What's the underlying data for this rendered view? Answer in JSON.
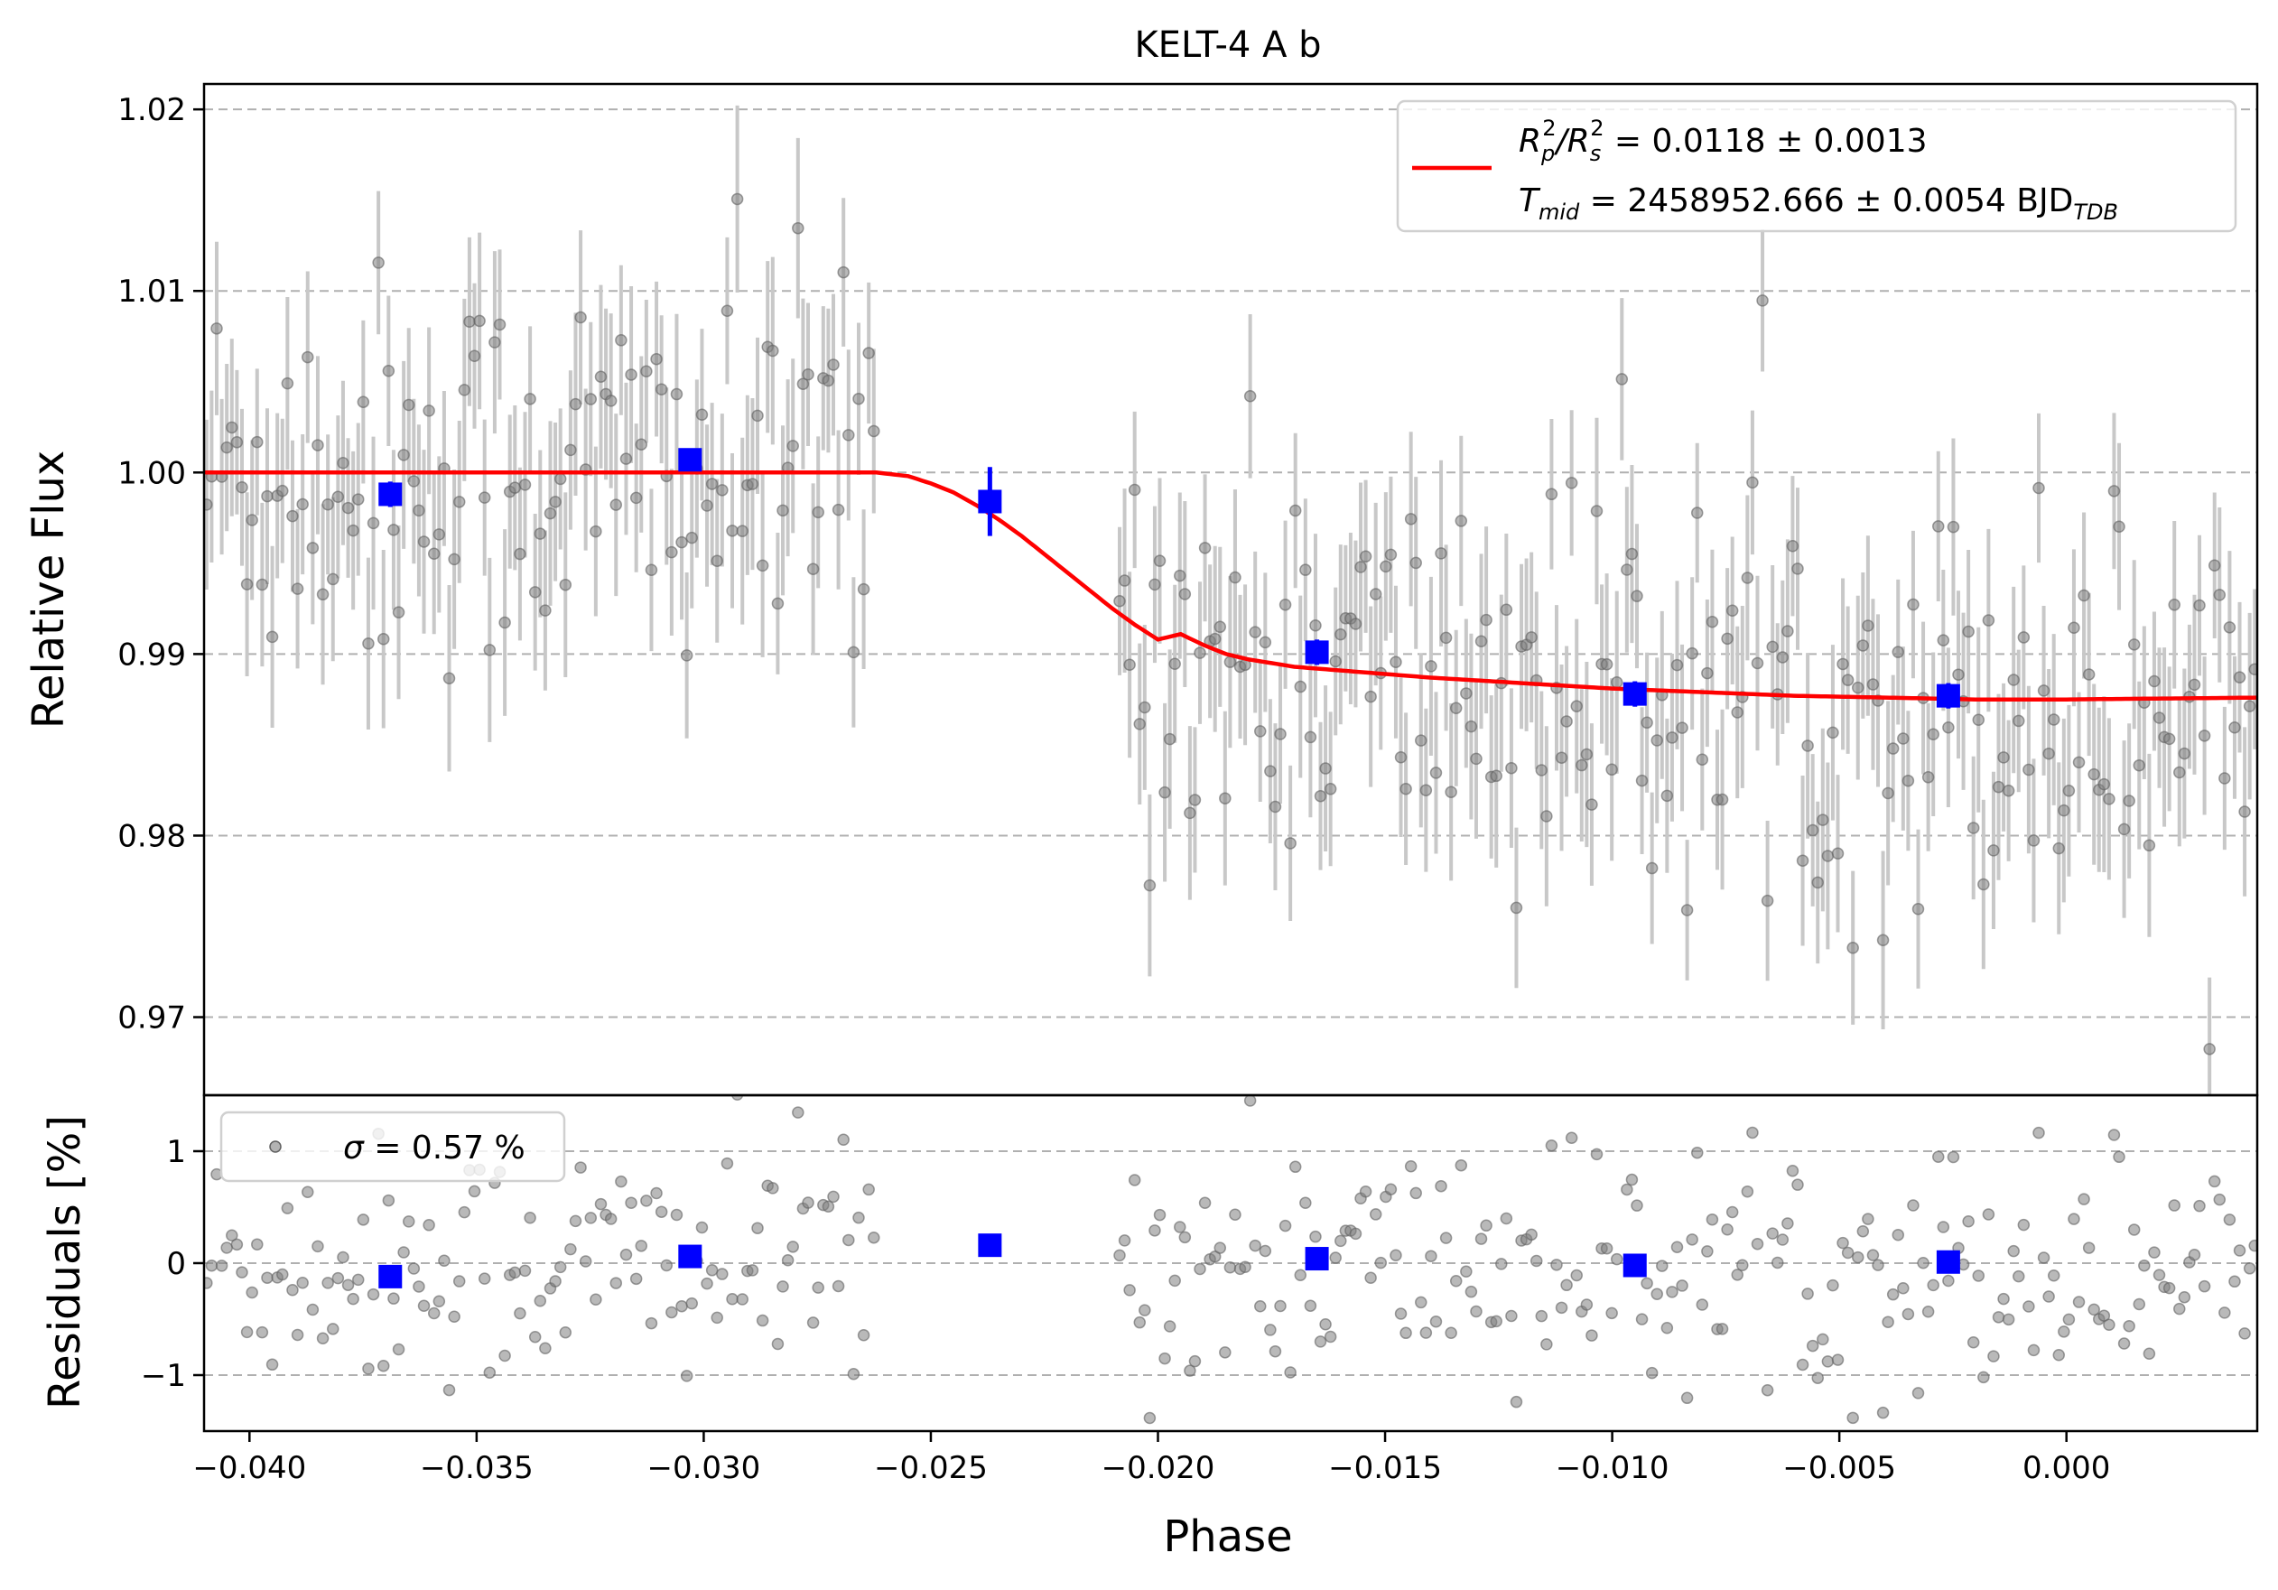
{
  "chart_data": [
    {
      "panel": "main",
      "type": "scatter",
      "title": "KELT-4 A b",
      "xlabel": "",
      "ylabel": "Relative Flux",
      "xlim": [
        -0.041,
        0.0042
      ],
      "ylim": [
        0.9657,
        1.0214
      ],
      "yticks": [
        0.97,
        0.98,
        0.99,
        1.0,
        1.01,
        1.02
      ],
      "ytick_labels": [
        "0.97",
        "0.98",
        "0.99",
        "1.00",
        "1.01",
        "1.02"
      ],
      "grid": "horizontal dashed",
      "legend": {
        "position": "top-right",
        "line1_prefix": "R",
        "line1_sub1": "p",
        "line1_sup1": "2",
        "line1_mid": "/R",
        "line1_sub2": "s",
        "line1_sup2": "2",
        "line1_value": " = 0.0118 ± 0.0013",
        "line2_prefix": "T",
        "line2_sub": "mid",
        "line2_value": " = 2458952.666 ± 0.0054 BJD",
        "line2_unit_sub": "TDB"
      },
      "colors": {
        "data": "#808080",
        "errorbar": "#c8c8c8",
        "binned": "#0000ff",
        "model": "#ff0000",
        "grid": "#b0b0b0"
      },
      "model": {
        "name": "transit model",
        "x": [
          -0.041,
          -0.0262,
          -0.0255,
          -0.025,
          -0.0245,
          -0.024,
          -0.0235,
          -0.023,
          -0.0225,
          -0.022,
          -0.0215,
          -0.021,
          -0.0205,
          -0.02,
          -0.0195,
          -0.019,
          -0.0185,
          -0.018,
          -0.0175,
          -0.017,
          -0.016,
          -0.015,
          -0.014,
          -0.012,
          -0.01,
          -0.008,
          -0.006,
          -0.004,
          -0.002,
          0.0,
          0.0042
        ],
        "y": [
          1.0,
          1.0,
          0.9998,
          0.9994,
          0.9989,
          0.9982,
          0.9974,
          0.9965,
          0.9955,
          0.9945,
          0.9935,
          0.9925,
          0.9916,
          0.9908,
          0.9911,
          0.9905,
          0.99,
          0.9897,
          0.9895,
          0.9893,
          0.9891,
          0.9889,
          0.9887,
          0.9884,
          0.9881,
          0.9879,
          0.9877,
          0.9876,
          0.9875,
          0.9875,
          0.9876
        ]
      },
      "binned": {
        "x": [
          -0.0369,
          -0.0303,
          -0.0237,
          -0.0165,
          -0.0095,
          -0.0026
        ],
        "y": [
          0.9988,
          1.0007,
          0.9984,
          0.9901,
          0.9878,
          0.9877
        ],
        "err": [
          0.0007,
          0.0005,
          0.0019,
          0.0007,
          0.0007,
          0.0007
        ]
      },
      "data_segments": [
        {
          "x_start": -0.041,
          "x_end": -0.0262,
          "model_level": 1.0
        },
        {
          "x_start": -0.0209,
          "x_end": 0.0042,
          "model_level": "model"
        }
      ],
      "data_points_per_segment": [
        133,
        227
      ],
      "point_error": 0.0045
    },
    {
      "panel": "residuals",
      "type": "scatter",
      "xlabel": "Phase",
      "ylabel": "Residuals [%]",
      "xlim": [
        -0.041,
        0.0042
      ],
      "ylim": [
        -1.5,
        1.5
      ],
      "yticks": [
        -1,
        0,
        1
      ],
      "ytick_labels": [
        "−1",
        "0",
        "1"
      ],
      "xticks": [
        -0.04,
        -0.035,
        -0.03,
        -0.025,
        -0.02,
        -0.015,
        -0.01,
        -0.005,
        0.0
      ],
      "xtick_labels": [
        "−0.040",
        "−0.035",
        "−0.030",
        "−0.025",
        "−0.020",
        "−0.015",
        "−0.010",
        "−0.005",
        "0.000"
      ],
      "grid": "horizontal dashed",
      "legend": {
        "position": "top-left",
        "sigma_symbol": "σ",
        "label": " = 0.57 %"
      },
      "binned": {
        "x": [
          -0.0369,
          -0.0303,
          -0.0237,
          -0.0165,
          -0.0095,
          -0.0026
        ],
        "y": [
          -0.12,
          0.06,
          0.16,
          0.04,
          -0.02,
          0.01
        ]
      },
      "scatter_sigma": 0.57
    }
  ]
}
